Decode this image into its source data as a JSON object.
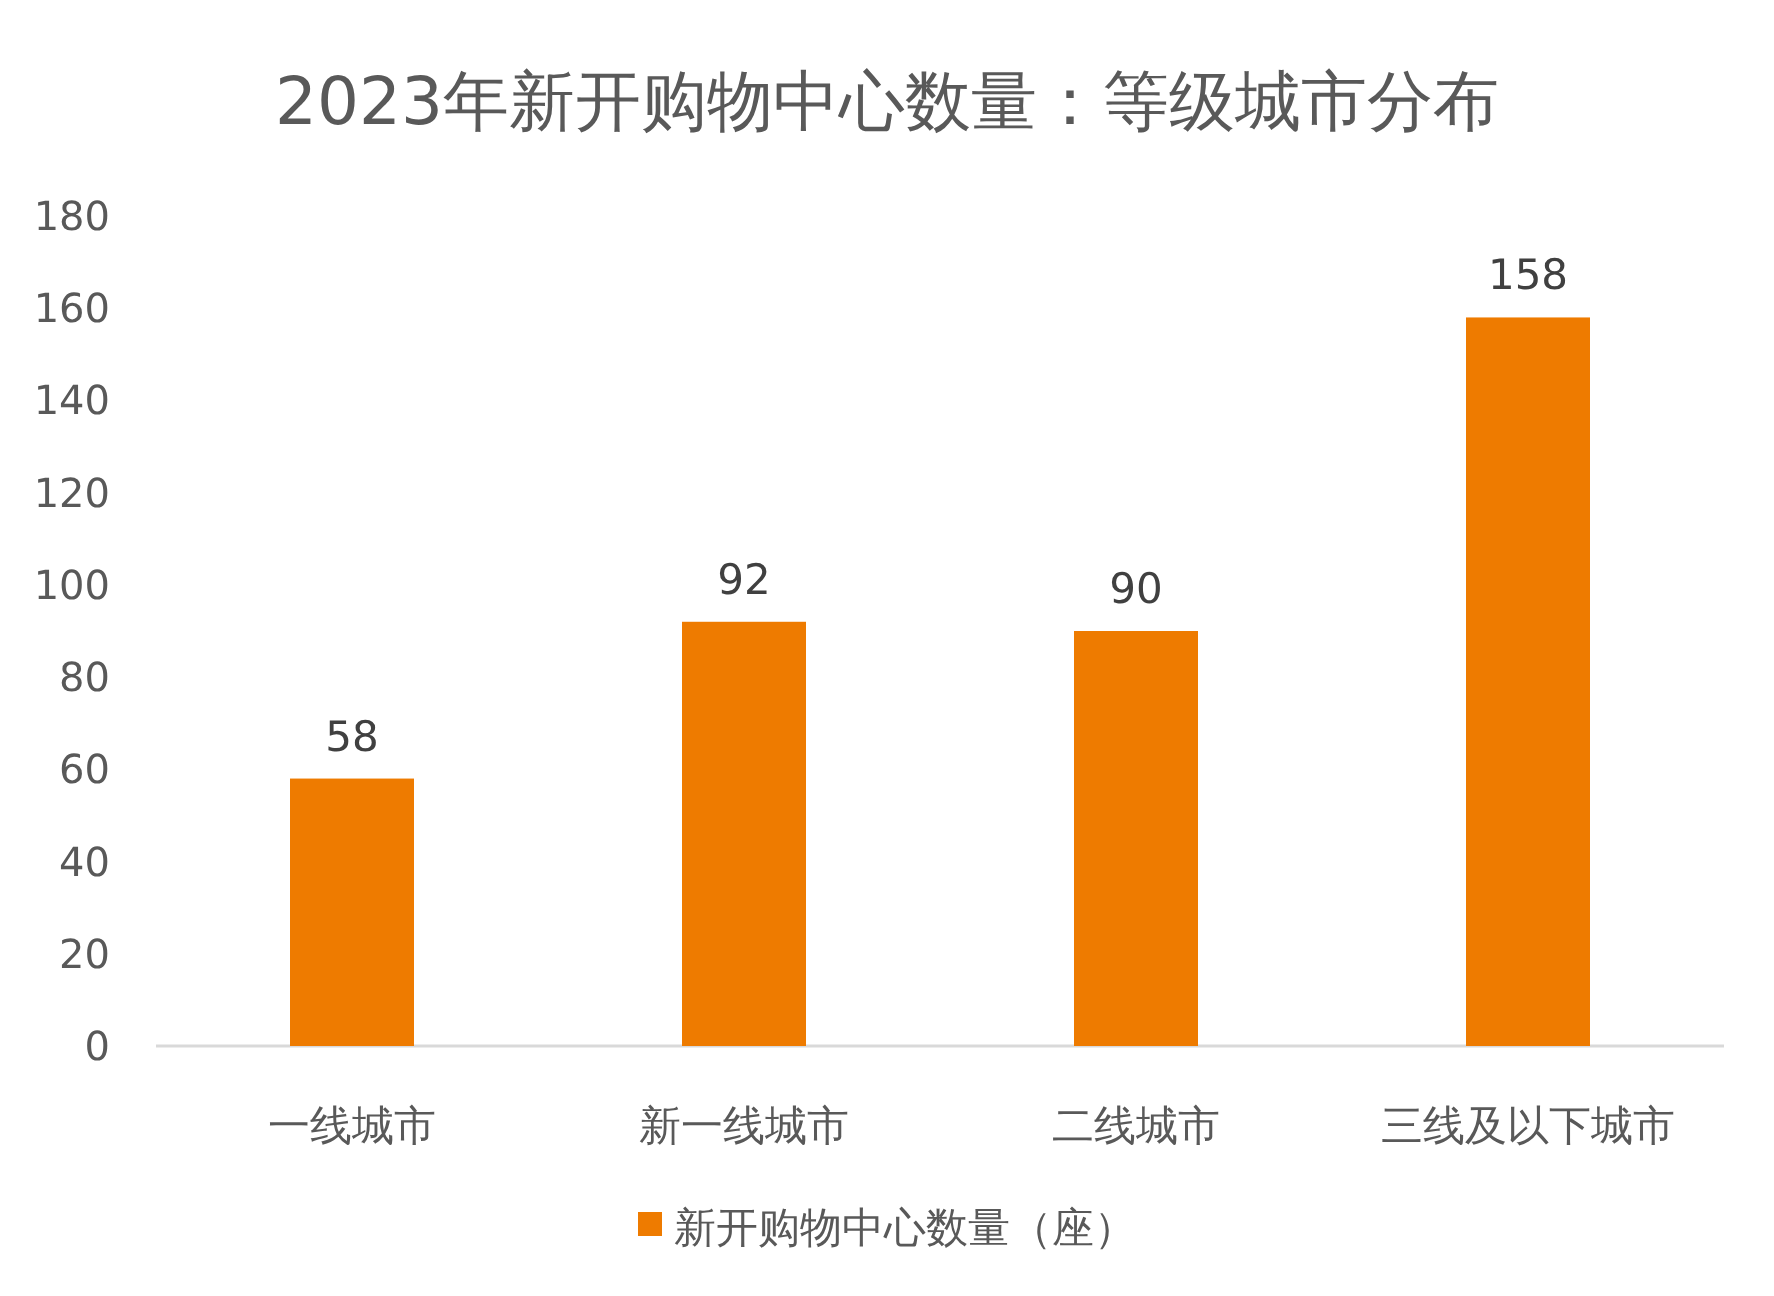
{
  "chart_data": {
    "type": "bar",
    "title": "2023年新开购物中心数量：等级城市分布",
    "categories": [
      "一线城市",
      "新一线城市",
      "二线城市",
      "三线及以下城市"
    ],
    "series": [
      {
        "name": "新开购物中心数量（座）",
        "color": "#ee7b00",
        "values": [
          58,
          92,
          90,
          158
        ]
      }
    ],
    "ylim": [
      0,
      180
    ],
    "yticks": [
      0,
      20,
      40,
      60,
      80,
      100,
      120,
      140,
      160,
      180
    ],
    "data_labels": true,
    "legend": "bottom",
    "grid": false
  }
}
